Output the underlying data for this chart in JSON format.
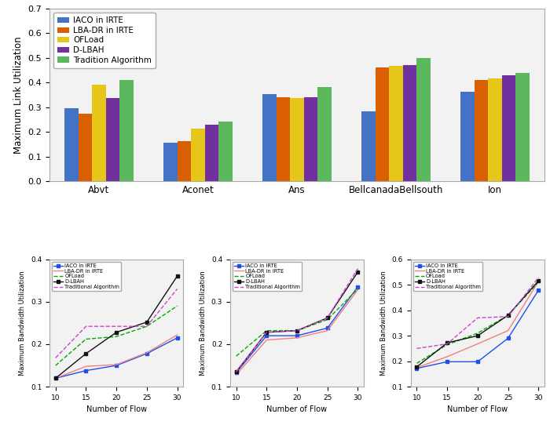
{
  "bar_categories": [
    "Abvt",
    "Aconet",
    "Ans",
    "BellcanadaBellsouth",
    "Ion"
  ],
  "bar_data": {
    "IACO in IRTE": [
      0.295,
      0.155,
      0.352,
      0.282,
      0.362
    ],
    "LBA-DR in IRTE": [
      0.272,
      0.163,
      0.34,
      0.462,
      0.41
    ],
    "OFLoad": [
      0.39,
      0.212,
      0.338,
      0.468,
      0.418
    ],
    "D-LBAH": [
      0.338,
      0.228,
      0.34,
      0.472,
      0.428
    ],
    "Tradition Algorithm": [
      0.41,
      0.242,
      0.38,
      0.5,
      0.44
    ]
  },
  "bar_colors": {
    "IACO in IRTE": "#4472c4",
    "LBA-DR in IRTE": "#d95f02",
    "OFLoad": "#e6c619",
    "D-LBAH": "#7030a0",
    "Tradition Algorithm": "#5cb85c"
  },
  "bar_ylabel": "Maximum Link Utilization",
  "bar_ylim": [
    0,
    0.7
  ],
  "bar_yticks": [
    0,
    0.1,
    0.2,
    0.3,
    0.4,
    0.5,
    0.6,
    0.7
  ],
  "line_x": [
    10,
    15,
    20,
    25,
    30
  ],
  "line1_data": {
    "IACO in IRTE": [
      0.12,
      0.138,
      0.15,
      0.178,
      0.215
    ],
    "LBA-DR in IRTE": [
      0.12,
      0.148,
      0.152,
      0.18,
      0.222
    ],
    "OFLoad": [
      0.15,
      0.212,
      0.218,
      0.242,
      0.29
    ],
    "D-LBAH": [
      0.12,
      0.178,
      0.228,
      0.252,
      0.36
    ],
    "Traditional Algorithm": [
      0.168,
      0.242,
      0.242,
      0.242,
      0.33
    ]
  },
  "line1_ylim": [
    0.1,
    0.4
  ],
  "line1_yticks": [
    0.1,
    0.2,
    0.3,
    0.4
  ],
  "line2_data": {
    "IACO in IRTE": [
      0.133,
      0.22,
      0.22,
      0.238,
      0.335
    ],
    "LBA-DR in IRTE": [
      0.128,
      0.21,
      0.215,
      0.232,
      0.328
    ],
    "OFLoad": [
      0.172,
      0.232,
      0.232,
      0.258,
      0.33
    ],
    "D-LBAH": [
      0.135,
      0.228,
      0.232,
      0.262,
      0.37
    ],
    "Traditional Algorithm": [
      0.135,
      0.228,
      0.232,
      0.262,
      0.378
    ]
  },
  "line2_ylim": [
    0.1,
    0.4
  ],
  "line2_yticks": [
    0.1,
    0.2,
    0.3,
    0.4
  ],
  "line3_data": {
    "IACO in IRTE": [
      0.172,
      0.198,
      0.198,
      0.29,
      0.478
    ],
    "LBA-DR in IRTE": [
      0.175,
      0.218,
      0.268,
      0.32,
      0.512
    ],
    "OFLoad": [
      0.192,
      0.265,
      0.31,
      0.38,
      0.51
    ],
    "D-LBAH": [
      0.178,
      0.272,
      0.3,
      0.38,
      0.515
    ],
    "Traditional Algorithm": [
      0.25,
      0.268,
      0.37,
      0.375,
      0.528
    ]
  },
  "line3_ylim": [
    0.1,
    0.6
  ],
  "line3_yticks": [
    0.1,
    0.2,
    0.3,
    0.4,
    0.5,
    0.6
  ],
  "line_colors": {
    "IACO in IRTE": "#1f4fe8",
    "LBA-DR in IRTE": "#f08080",
    "OFLoad": "#00aa00",
    "D-LBAH": "#111111",
    "Traditional Algorithm": "#cc44cc"
  },
  "line_styles": {
    "IACO in IRTE": "-",
    "LBA-DR in IRTE": "-",
    "OFLoad": "--",
    "D-LBAH": "-",
    "Traditional Algorithm": "--"
  },
  "line_markers": {
    "IACO in IRTE": "s",
    "LBA-DR in IRTE": "none",
    "OFLoad": "none",
    "D-LBAH": "s",
    "Traditional Algorithm": "none"
  },
  "xlabel": "Number of Flow",
  "ylabel": "Maximum Bandwidth Utilization",
  "plot_bg": "#ffffff",
  "fig_bg": "#ffffff"
}
